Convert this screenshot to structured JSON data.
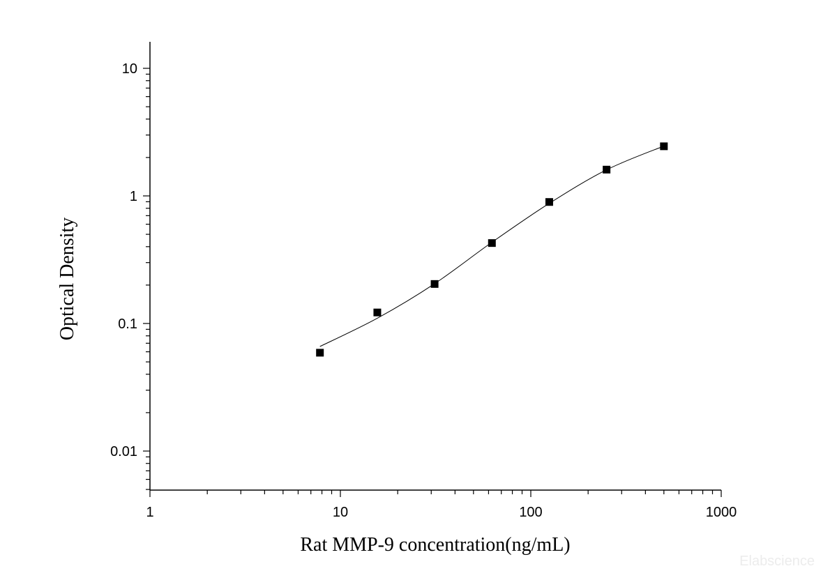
{
  "chart_data": {
    "type": "scatter",
    "xlabel": "Rat MMP-9 concentration(ng/mL)",
    "ylabel": "Optical Density",
    "x_scale": "log",
    "y_scale": "log",
    "xlim": [
      1,
      1000
    ],
    "ylim": [
      0.005,
      10
    ],
    "x_ticks": [
      1,
      10,
      100,
      1000
    ],
    "x_tick_labels": [
      "1",
      "10",
      "100",
      "1000"
    ],
    "y_ticks": [
      0.01,
      0.1,
      1,
      10
    ],
    "y_tick_labels": [
      "0.01",
      "0.1",
      "1",
      "10"
    ],
    "grid": false,
    "series": [
      {
        "marker": "square",
        "color": "#000000",
        "x": [
          7.81,
          15.63,
          31.25,
          62.5,
          125,
          250,
          500
        ],
        "y": [
          0.059,
          0.122,
          0.204,
          0.427,
          0.896,
          1.607,
          2.448
        ]
      }
    ],
    "fit_curve": {
      "color": "#000000",
      "x": [
        7.81,
        15.63,
        31.25,
        62.5,
        125,
        250,
        500
      ],
      "y": [
        0.066,
        0.11,
        0.205,
        0.433,
        0.874,
        1.601,
        2.46
      ]
    }
  },
  "watermark": "Elabscience"
}
